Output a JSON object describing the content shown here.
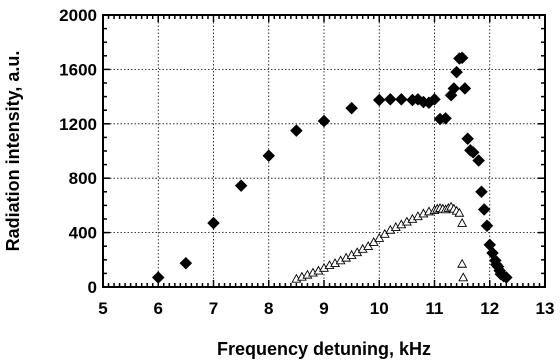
{
  "chart_data": {
    "type": "scatter",
    "title": "",
    "xlabel": "Frequency detuning, kHz",
    "ylabel": "Radiation intensity, a.u.",
    "xlim": [
      5,
      13
    ],
    "ylim": [
      0,
      2000
    ],
    "grid": true,
    "x_ticks": [
      5,
      6,
      7,
      8,
      9,
      10,
      11,
      12,
      13
    ],
    "y_ticks": [
      0,
      400,
      800,
      1200,
      1600,
      2000
    ],
    "series": [
      {
        "marker": "filled-diamond",
        "color": "#000000",
        "points": [
          [
            6.0,
            70
          ],
          [
            6.5,
            175
          ],
          [
            7.0,
            470
          ],
          [
            7.5,
            745
          ],
          [
            8.0,
            965
          ],
          [
            8.5,
            1150
          ],
          [
            9.0,
            1220
          ],
          [
            9.5,
            1315
          ],
          [
            10.0,
            1375
          ],
          [
            10.2,
            1380
          ],
          [
            10.4,
            1380
          ],
          [
            10.6,
            1375
          ],
          [
            10.7,
            1380
          ],
          [
            10.8,
            1360
          ],
          [
            10.9,
            1355
          ],
          [
            11.0,
            1380
          ],
          [
            11.1,
            1235
          ],
          [
            11.2,
            1240
          ],
          [
            11.3,
            1410
          ],
          [
            11.35,
            1460
          ],
          [
            11.4,
            1580
          ],
          [
            11.45,
            1680
          ],
          [
            11.5,
            1685
          ],
          [
            11.55,
            1460
          ],
          [
            11.6,
            1090
          ],
          [
            11.65,
            1005
          ],
          [
            11.7,
            990
          ],
          [
            11.8,
            930
          ],
          [
            11.85,
            700
          ],
          [
            11.9,
            570
          ],
          [
            11.95,
            450
          ],
          [
            12.0,
            310
          ],
          [
            12.05,
            250
          ],
          [
            12.1,
            195
          ],
          [
            12.12,
            165
          ],
          [
            12.15,
            150
          ],
          [
            12.18,
            120
          ],
          [
            12.2,
            95
          ],
          [
            12.25,
            80
          ],
          [
            12.3,
            70
          ]
        ]
      },
      {
        "marker": "open-triangle",
        "color": "#000000",
        "points": [
          [
            8.5,
            60
          ],
          [
            8.6,
            75
          ],
          [
            8.7,
            90
          ],
          [
            8.8,
            105
          ],
          [
            8.9,
            120
          ],
          [
            9.0,
            140
          ],
          [
            9.1,
            160
          ],
          [
            9.2,
            175
          ],
          [
            9.3,
            195
          ],
          [
            9.4,
            215
          ],
          [
            9.5,
            235
          ],
          [
            9.6,
            255
          ],
          [
            9.7,
            280
          ],
          [
            9.8,
            300
          ],
          [
            9.9,
            330
          ],
          [
            10.0,
            360
          ],
          [
            10.1,
            390
          ],
          [
            10.2,
            420
          ],
          [
            10.3,
            440
          ],
          [
            10.4,
            460
          ],
          [
            10.5,
            480
          ],
          [
            10.6,
            500
          ],
          [
            10.7,
            520
          ],
          [
            10.8,
            540
          ],
          [
            10.9,
            555
          ],
          [
            11.0,
            565
          ],
          [
            11.05,
            575
          ],
          [
            11.1,
            580
          ],
          [
            11.15,
            575
          ],
          [
            11.2,
            570
          ],
          [
            11.25,
            580
          ],
          [
            11.3,
            590
          ],
          [
            11.35,
            575
          ],
          [
            11.4,
            560
          ],
          [
            11.45,
            545
          ],
          [
            11.5,
            470
          ],
          [
            11.5,
            170
          ],
          [
            11.52,
            70
          ]
        ]
      }
    ]
  }
}
